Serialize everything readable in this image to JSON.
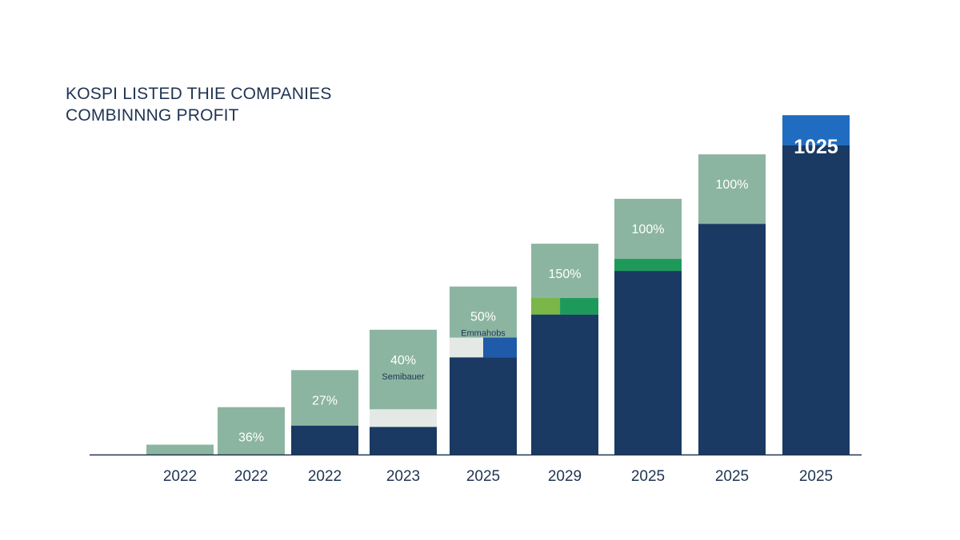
{
  "chart_data": {
    "type": "bar",
    "title_lines": [
      "KOSPI LISTED THIE COMPANIES",
      "COMBINNNG PROFIT"
    ],
    "xlabel": "",
    "ylabel": "",
    "grid": false,
    "categories": [
      "2022",
      "2022",
      "2022",
      "2023",
      "2025",
      "2029",
      "2025",
      "2025",
      "2025"
    ],
    "totals": [
      2.4,
      11.5,
      20.5,
      30.3,
      40.8,
      51.2,
      62.1,
      72.9,
      82.4
    ],
    "base": [
      0,
      0,
      7.0,
      6.7,
      23.6,
      34.0,
      44.6,
      56.0,
      75.1
    ],
    "data_labels": [
      "",
      "36%",
      "27%",
      "40%",
      "50%",
      "150%",
      "100%",
      "100%",
      "1025"
    ],
    "sub_labels": [
      "",
      "",
      "",
      "Semibauer",
      "Emmahobs",
      "",
      "",
      "",
      ""
    ],
    "segments": [
      [],
      [],
      [],
      [
        {
          "from": 6.7,
          "to": 11.0,
          "color": "#e4e9e6",
          "span": [
            0,
            1
          ]
        }
      ],
      [
        {
          "from": 23.6,
          "to": 28.4,
          "color": "#e4e9e6",
          "span": [
            0,
            0.5
          ]
        },
        {
          "from": 23.6,
          "to": 28.4,
          "color": "#1f5ba8",
          "span": [
            0.5,
            1
          ]
        }
      ],
      [
        {
          "from": 34.0,
          "to": 38.0,
          "color": "#7ab648",
          "span": [
            0,
            0.43
          ]
        },
        {
          "from": 34.0,
          "to": 38.0,
          "color": "#1d9a5a",
          "span": [
            0.43,
            1
          ]
        }
      ],
      [
        {
          "from": 44.6,
          "to": 47.5,
          "color": "#1d9a5a",
          "span": [
            0,
            1
          ]
        }
      ],
      [],
      [
        {
          "from": 75.1,
          "to": 82.4,
          "color": "#1f6cc0",
          "span": [
            0,
            1
          ]
        }
      ]
    ],
    "ylim": [
      0,
      84
    ],
    "colors": {
      "base": "#1a3a64",
      "top": "#8cb5a1",
      "axis": "#1f3452"
    }
  }
}
